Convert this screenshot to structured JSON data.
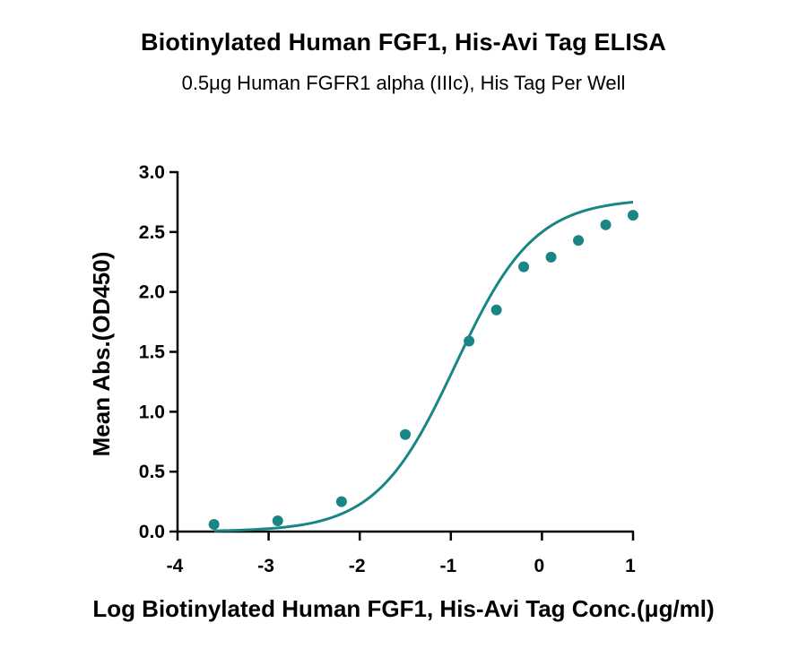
{
  "chart_data": {
    "type": "scatter",
    "title": "Biotinylated Human FGF1, His-Avi Tag ELISA",
    "subtitle": "0.5μg Human FGFR1 alpha (IIIc), His Tag Per Well",
    "xlabel": "Log Biotinylated Human FGF1, His-Avi Tag Conc.(μg/ml)",
    "ylabel": "Mean Abs.(OD450)",
    "xlim": [
      -4,
      1
    ],
    "ylim": [
      0,
      3.0
    ],
    "x_ticks": [
      -4,
      -3,
      -2,
      -1,
      0,
      1
    ],
    "x_tick_labels": [
      "-4",
      "-3",
      "-2",
      "-1",
      "0",
      "1"
    ],
    "y_ticks": [
      0,
      0.5,
      1.0,
      1.5,
      2.0,
      2.5,
      3.0
    ],
    "y_tick_labels": [
      "0.0",
      "0.5",
      "1.0",
      "1.5",
      "2.0",
      "2.5",
      "3.0"
    ],
    "grid": false,
    "legend": "none",
    "color": "#1a8585",
    "series": [
      {
        "points": [
          {
            "x": -3.6,
            "y": 0.06
          },
          {
            "x": -2.9,
            "y": 0.09
          },
          {
            "x": -2.2,
            "y": 0.25
          },
          {
            "x": -1.5,
            "y": 0.81
          },
          {
            "x": -0.8,
            "y": 1.59
          },
          {
            "x": -0.5,
            "y": 1.85
          },
          {
            "x": -0.2,
            "y": 2.21
          },
          {
            "x": 0.1,
            "y": 2.29
          },
          {
            "x": 0.4,
            "y": 2.43
          },
          {
            "x": 0.7,
            "y": 2.56
          },
          {
            "x": 1.0,
            "y": 2.64
          }
        ],
        "fit": {
          "model": "4PL",
          "bottom": 0.0,
          "top": 2.78,
          "log_ec50": -0.95,
          "hill_slope": 1.0,
          "x_range": [
            -3.6,
            1.0
          ]
        }
      }
    ]
  }
}
